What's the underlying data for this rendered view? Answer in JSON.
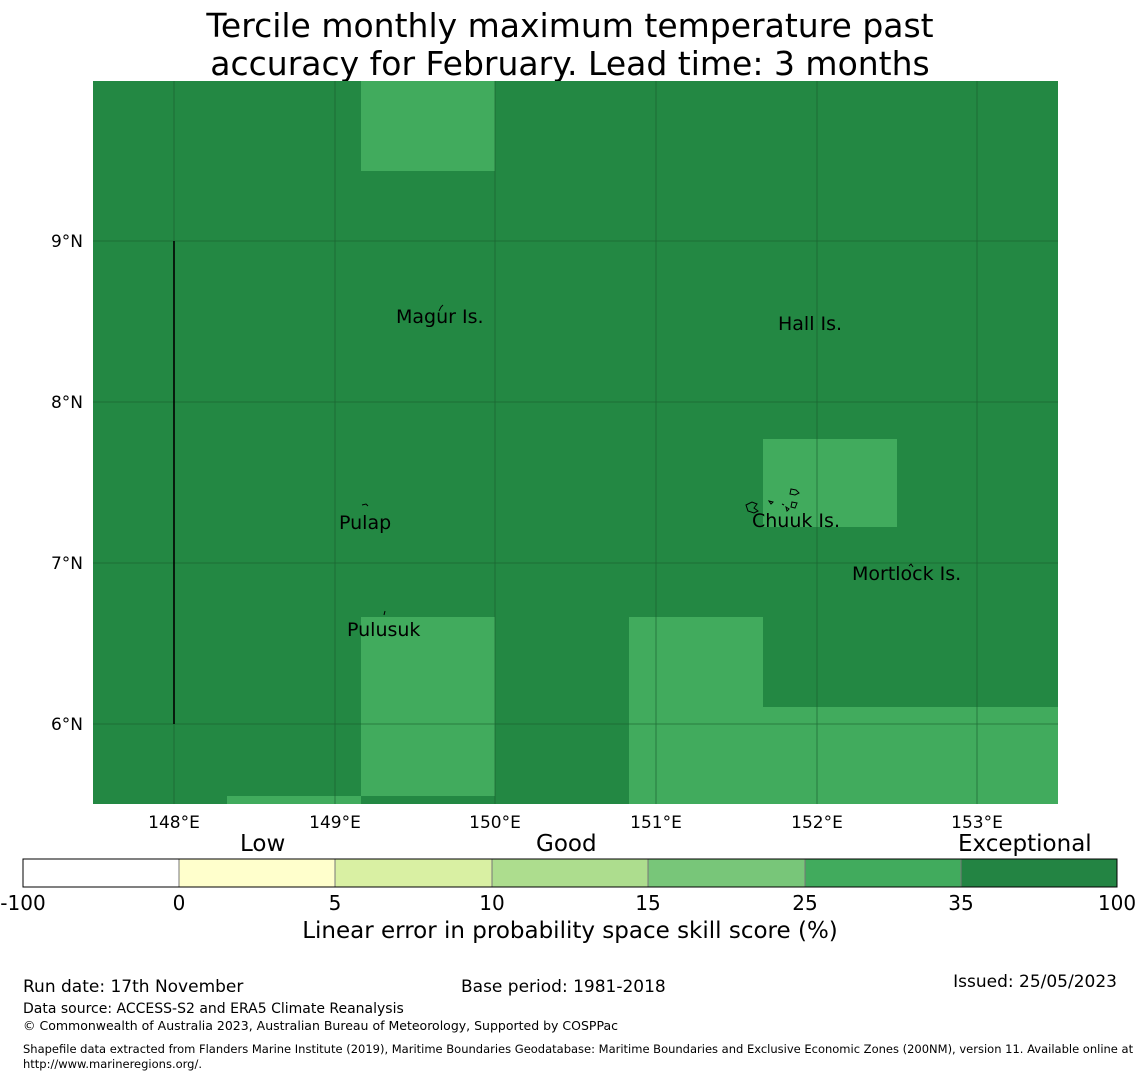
{
  "title": {
    "line1": "Tercile monthly maximum temperature past",
    "line2": "accuracy for February. Lead time: 3 months"
  },
  "map": {
    "x_ticks": [
      "148°E",
      "149°E",
      "150°E",
      "151°E",
      "152°E",
      "153°E"
    ],
    "y_ticks": [
      "9°N",
      "8°N",
      "7°N",
      "6°N"
    ],
    "places": [
      {
        "name": "Magur Is.",
        "id": "magur"
      },
      {
        "name": "Hall Is.",
        "id": "hall"
      },
      {
        "name": "Pulap",
        "id": "pulap"
      },
      {
        "name": "Chuuk Is.",
        "id": "chuuk"
      },
      {
        "name": "Mortlock Is.",
        "id": "mortlock"
      },
      {
        "name": "Pulusuk",
        "id": "pulusuk"
      }
    ],
    "background_color": "#238843",
    "highlight_color": "#41ab5d"
  },
  "colorbar": {
    "categories": [
      "Low",
      "Good",
      "Exceptional"
    ],
    "ticks": [
      "-100",
      "0",
      "5",
      "10",
      "15",
      "25",
      "35",
      "100"
    ],
    "colors": [
      "#ffffff",
      "#ffffcc",
      "#d9f0a3",
      "#addd8e",
      "#78c679",
      "#41ab5d",
      "#238443"
    ],
    "label": "Linear error in probability space skill score (%)"
  },
  "footer": {
    "run_date": "Run date: 17th November",
    "base_period": "Base period: 1981-2018",
    "issued": "Issued: 25/05/2023",
    "data_source": "Data source: ACCESS-S2 and ERA5 Climate Reanalysis",
    "copyright": "© Commonwealth of Australia 2023, Australian Bureau of Meteorology, Supported by COSPPac",
    "shapefile": "Shapefile data extracted from Flanders Marine Institute (2019), Maritime Boundaries Geodatabase: Maritime Boundaries and Exclusive Economic Zones (200NM), version 11. Available online at http://www.marineregions.org/."
  }
}
